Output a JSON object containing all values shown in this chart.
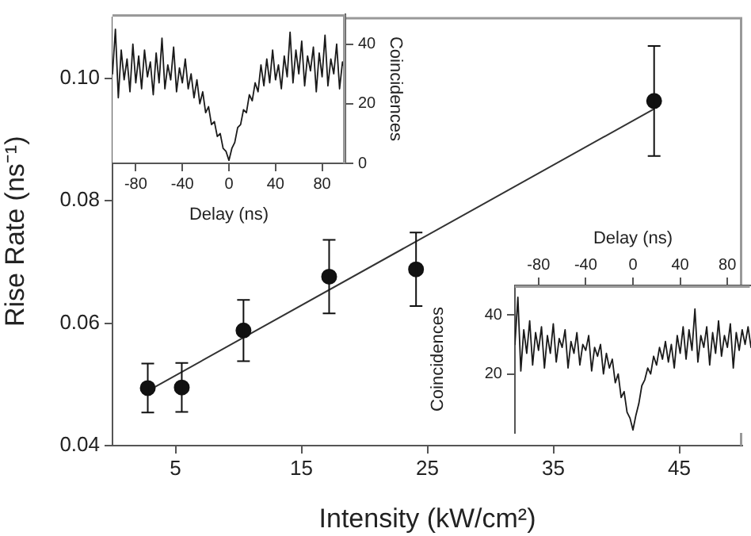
{
  "chart_data": [
    {
      "type": "scatter",
      "xlabel": "Intensity (kW/cm²)",
      "ylabel": "Rise Rate (ns⁻¹)",
      "xlim": [
        0,
        50
      ],
      "ylim": [
        0.04,
        0.11
      ],
      "xticks": [
        5,
        15,
        25,
        35,
        45
      ],
      "yticks": [
        0.04,
        0.06,
        0.08,
        {
          "value": 0.1,
          "label": "0.10"
        }
      ],
      "marker": "circle",
      "series": [
        {
          "type": "scatter",
          "color": "#111111",
          "x": [
            2.8,
            5.5,
            10.4,
            17.2,
            24.1,
            43.0
          ],
          "values": [
            0.0494,
            0.0495,
            0.0588,
            0.0676,
            0.0688,
            0.0963
          ],
          "errors": [
            0.004,
            0.004,
            0.005,
            0.006,
            0.006,
            0.009
          ]
        },
        {
          "type": "line",
          "color": "#333333",
          "marker": "none",
          "x": [
            2.85,
            43.0
          ],
          "values": [
            0.049,
            0.095
          ]
        }
      ]
    },
    {
      "type": "line",
      "xlabel": "Delay (ns)",
      "ylabel": "Coincidences",
      "xlim": [
        -100,
        100
      ],
      "ylim": [
        0,
        50
      ],
      "xticks": [
        -80,
        -40,
        0,
        40,
        80
      ],
      "yticks": [
        0,
        20,
        40
      ],
      "series": [
        {
          "color": "#1a1a1a",
          "x": [
            -100,
            -97.5,
            -95,
            -92.5,
            -90,
            -87.5,
            -85,
            -82.5,
            -80,
            -77.5,
            -75,
            -72.5,
            -70,
            -67.5,
            -65,
            -62.5,
            -60,
            -57.5,
            -55,
            -52.5,
            -50,
            -47.5,
            -45,
            -42.5,
            -40,
            -37.5,
            -35,
            -32.5,
            -30,
            -27.5,
            -25,
            -22.5,
            -20,
            -17.5,
            -15,
            -12.5,
            -10,
            -7.5,
            -5,
            -2.5,
            0,
            2.5,
            5,
            7.5,
            10,
            12.5,
            15,
            17.5,
            20,
            22.5,
            25,
            27.5,
            30,
            32.5,
            35,
            37.5,
            40,
            42.5,
            45,
            47.5,
            50,
            52.5,
            55,
            57.5,
            60,
            62.5,
            65,
            67.5,
            70,
            72.5,
            75,
            77.5,
            80,
            82.5,
            85,
            87.5,
            90,
            92.5,
            95,
            97.5,
            100
          ],
          "values": [
            30,
            45,
            22,
            38,
            28,
            35,
            24,
            40,
            27,
            36,
            25,
            38,
            29,
            34,
            23,
            37,
            27,
            42,
            25,
            33,
            28,
            39,
            24,
            32,
            27,
            35,
            25,
            30,
            22,
            28,
            20,
            24,
            17,
            19,
            13,
            14,
            9,
            10,
            5,
            4,
            1,
            5,
            7,
            12,
            13,
            18,
            17,
            23,
            21,
            27,
            24,
            33,
            26,
            35,
            27,
            38,
            28,
            33,
            25,
            36,
            29,
            44,
            27,
            38,
            30,
            41,
            26,
            36,
            31,
            39,
            24,
            37,
            29,
            43,
            26,
            35,
            30,
            40,
            25,
            34,
            31
          ]
        }
      ]
    },
    {
      "type": "line",
      "xlabel": "Delay (ns)",
      "ylabel": "Coincidences",
      "xlim": [
        -100,
        100
      ],
      "ylim": [
        0,
        50
      ],
      "xticks": [
        -80,
        -40,
        0,
        40,
        80
      ],
      "yticks": [
        20,
        40
      ],
      "series": [
        {
          "color": "#1a1a1a",
          "x": [
            -100,
            -97.5,
            -95,
            -92.5,
            -90,
            -87.5,
            -85,
            -82.5,
            -80,
            -77.5,
            -75,
            -72.5,
            -70,
            -67.5,
            -65,
            -62.5,
            -60,
            -57.5,
            -55,
            -52.5,
            -50,
            -47.5,
            -45,
            -42.5,
            -40,
            -37.5,
            -35,
            -32.5,
            -30,
            -27.5,
            -25,
            -22.5,
            -20,
            -17.5,
            -15,
            -12.5,
            -10,
            -7.5,
            -5,
            -2.5,
            0,
            2.5,
            5,
            7.5,
            10,
            12.5,
            15,
            17.5,
            20,
            22.5,
            25,
            27.5,
            30,
            32.5,
            35,
            37.5,
            40,
            42.5,
            45,
            47.5,
            50,
            52.5,
            55,
            57.5,
            60,
            62.5,
            65,
            67.5,
            70,
            72.5,
            75,
            77.5,
            80,
            82.5,
            85,
            87.5,
            90,
            92.5,
            95,
            97.5,
            100
          ],
          "values": [
            30,
            46,
            21,
            35,
            27,
            38,
            23,
            34,
            28,
            36,
            22,
            33,
            27,
            37,
            24,
            32,
            29,
            35,
            22,
            31,
            27,
            34,
            23,
            30,
            28,
            33,
            21,
            29,
            26,
            30,
            20,
            27,
            22,
            25,
            17,
            20,
            12,
            14,
            7,
            5,
            1,
            6,
            10,
            16,
            18,
            22,
            20,
            26,
            23,
            29,
            25,
            31,
            24,
            30,
            22,
            33,
            27,
            36,
            25,
            35,
            28,
            42,
            24,
            33,
            29,
            36,
            23,
            34,
            27,
            38,
            26,
            33,
            29,
            37,
            22,
            34,
            28,
            35,
            30,
            36,
            29
          ]
        }
      ]
    }
  ]
}
